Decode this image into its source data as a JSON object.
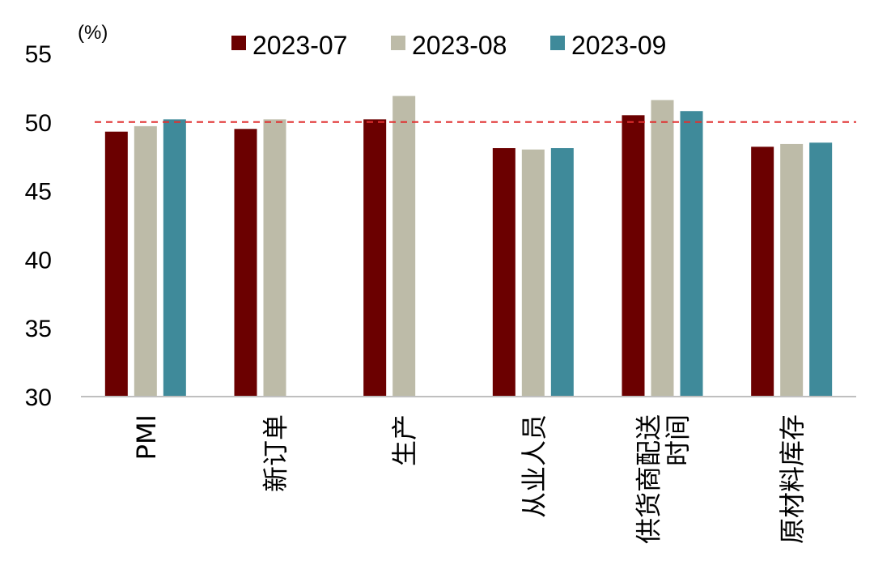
{
  "chart_data": {
    "type": "bar",
    "unit": "(%)",
    "categories": [
      [
        "PMI"
      ],
      [
        "新订单"
      ],
      [
        "生产"
      ],
      [
        "从业人员"
      ],
      [
        "供货商配送",
        "时间"
      ],
      [
        "原材料库存"
      ]
    ],
    "series": [
      {
        "name": "2023-07",
        "color": "#6b0000",
        "values": [
          49.3,
          49.5,
          50.2,
          48.1,
          50.5,
          48.2
        ]
      },
      {
        "name": "2023-08",
        "color": "#bdbba8",
        "values": [
          49.7,
          50.2,
          51.9,
          48.0,
          51.6,
          48.4
        ]
      },
      {
        "name": "2023-09",
        "color": "#3f8a9a",
        "values": [
          50.2,
          null,
          null,
          48.1,
          50.8,
          48.5
        ]
      }
    ],
    "ylim": [
      30,
      55
    ],
    "yticks": [
      30,
      35,
      40,
      45,
      50,
      55
    ],
    "reference_line": {
      "value": 50,
      "color": "#e03030",
      "style": "dashed"
    },
    "legend_position": "top",
    "grid": false
  }
}
